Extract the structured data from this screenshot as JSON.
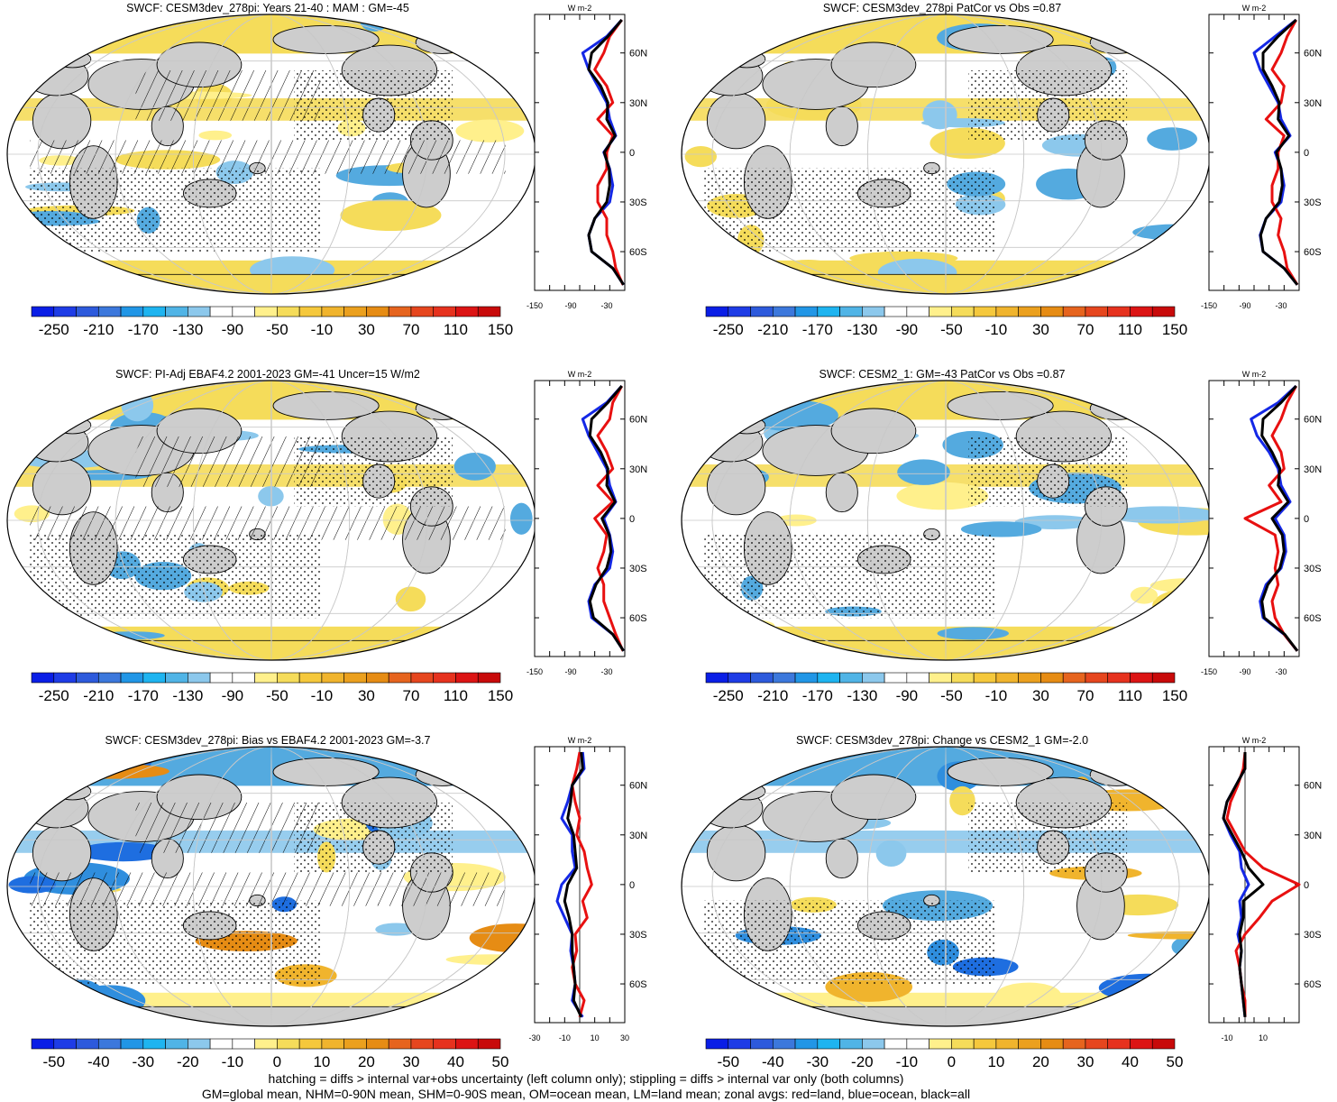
{
  "colors": {
    "land": "#cdcdcd",
    "neg": "#54aadf",
    "pos": "#f5dc5a",
    "strong_pos": "#e8a020",
    "zonal_land": "#e81010",
    "zonal_ocean": "#1428e6",
    "zonal_all": "#000000"
  },
  "colorbars": {
    "abs": {
      "labels": [
        "-250",
        "-210",
        "-170",
        "-130",
        "-90",
        "-50",
        "-10",
        "30",
        "70",
        "110",
        "150"
      ],
      "colors": [
        "#0a1ee6",
        "#1e3ce6",
        "#2d5adc",
        "#3c78dc",
        "#2196e6",
        "#1eb4f0",
        "#50b4e6",
        "#8cc8ec",
        "#ffffff",
        "#ffffff",
        "#fff08c",
        "#f5dc5a",
        "#f5c83c",
        "#f0b42d",
        "#eba01e",
        "#e68c14",
        "#e6641e",
        "#e6461e",
        "#e6321e",
        "#dc1414",
        "#c80a0a"
      ]
    },
    "diff": {
      "labels": [
        "-50",
        "-40",
        "-30",
        "-20",
        "-10",
        "0",
        "10",
        "20",
        "30",
        "40",
        "50"
      ],
      "colors": [
        "#0a1ee6",
        "#1e3ce6",
        "#2d5adc",
        "#3c78dc",
        "#2196e6",
        "#1eb4f0",
        "#50b4e6",
        "#8cc8ec",
        "#ffffff",
        "#ffffff",
        "#fff08c",
        "#f5dc5a",
        "#f5c83c",
        "#f0b42d",
        "#eba01e",
        "#e68c14",
        "#e6641e",
        "#e6461e",
        "#e6321e",
        "#dc1414",
        "#c80a0a"
      ]
    }
  },
  "chart_data": [
    {
      "type": "heatmap",
      "panel": "r1c1",
      "title": "SWCF: CESM3dev_278pi: Years 21-40 : MAM : GM=-45",
      "colorbar": "abs",
      "zonal": {
        "xlim": [
          -150,
          0
        ],
        "xticks": [
          "-150",
          "-90",
          "-30"
        ],
        "unit": "W m-2",
        "lat_ticks": [
          "60N",
          "30N",
          "0",
          "30S",
          "60S"
        ],
        "lat": [
          80,
          70,
          60,
          50,
          40,
          30,
          20,
          10,
          0,
          -10,
          -20,
          -30,
          -40,
          -50,
          -60,
          -70,
          -80
        ],
        "series": [
          {
            "key": "ocean",
            "values": [
              -5,
              -30,
              -70,
              -60,
              -45,
              -30,
              -25,
              -15,
              -35,
              -25,
              -20,
              -25,
              -50,
              -60,
              -55,
              -20,
              -2
            ]
          },
          {
            "key": "land",
            "values": [
              -5,
              -25,
              -35,
              -50,
              -30,
              -20,
              -45,
              -20,
              -30,
              -30,
              -45,
              -45,
              -30,
              -30,
              -20,
              -15,
              -3
            ]
          },
          {
            "key": "all",
            "values": [
              -5,
              -28,
              -55,
              -60,
              -40,
              -28,
              -30,
              -16,
              -34,
              -26,
              -25,
              -30,
              -50,
              -60,
              -55,
              -20,
              -2
            ]
          }
        ]
      }
    },
    {
      "type": "heatmap",
      "panel": "r1c2",
      "title": "SWCF: CESM3dev_278pi PatCor vs Obs =0.87",
      "colorbar": "abs",
      "zonal": {
        "xlim": [
          -150,
          0
        ],
        "xticks": [
          "-150",
          "-90",
          "-30"
        ],
        "unit": "W m-2",
        "lat_ticks": [
          "60N",
          "30N",
          "0",
          "30S",
          "60S"
        ],
        "lat": [
          80,
          70,
          60,
          50,
          40,
          30,
          20,
          10,
          0,
          -10,
          -20,
          -30,
          -40,
          -50,
          -60,
          -70,
          -80
        ],
        "series": [
          {
            "key": "ocean",
            "values": [
              -5,
              -40,
              -75,
              -65,
              -50,
              -35,
              -30,
              -15,
              -40,
              -30,
              -25,
              -30,
              -55,
              -65,
              -60,
              -25,
              -3
            ]
          },
          {
            "key": "land",
            "values": [
              -5,
              -20,
              -30,
              -45,
              -25,
              -30,
              -55,
              -25,
              -35,
              -35,
              -45,
              -45,
              -30,
              -35,
              -25,
              -20,
              -3
            ]
          },
          {
            "key": "all",
            "values": [
              -5,
              -35,
              -60,
              -60,
              -45,
              -33,
              -35,
              -17,
              -38,
              -30,
              -28,
              -33,
              -55,
              -64,
              -60,
              -25,
              -3
            ]
          }
        ]
      }
    },
    {
      "type": "heatmap",
      "panel": "r2c1",
      "title": "SWCF: PI-Adj EBAF4.2 2001-2023 GM=-41 Uncer=15 W/m2",
      "colorbar": "abs",
      "zonal": {
        "xlim": [
          -150,
          0
        ],
        "xticks": [
          "-150",
          "-90",
          "-30"
        ],
        "unit": "W m-2",
        "lat_ticks": [
          "60N",
          "30N",
          "0",
          "30S",
          "60S"
        ],
        "lat": [
          80,
          70,
          60,
          50,
          40,
          30,
          20,
          10,
          0,
          -10,
          -20,
          -30,
          -40,
          -50,
          -60,
          -70,
          -80
        ],
        "series": [
          {
            "key": "ocean",
            "values": [
              -5,
              -30,
              -70,
              -60,
              -45,
              -30,
              -25,
              -15,
              -35,
              -25,
              -20,
              -25,
              -50,
              -60,
              -55,
              -20,
              -2
            ]
          },
          {
            "key": "land",
            "values": [
              -5,
              -20,
              -25,
              -45,
              -30,
              -20,
              -45,
              -20,
              -50,
              -30,
              -35,
              -45,
              -35,
              -35,
              -25,
              -15,
              -3
            ]
          },
          {
            "key": "all",
            "values": [
              -5,
              -28,
              -55,
              -58,
              -40,
              -28,
              -30,
              -16,
              -38,
              -26,
              -23,
              -30,
              -48,
              -58,
              -52,
              -20,
              -2
            ]
          }
        ]
      }
    },
    {
      "type": "heatmap",
      "panel": "r2c2",
      "title": "SWCF: CESM2_1: GM=-43 PatCor vs Obs =0.87",
      "colorbar": "abs",
      "zonal": {
        "xlim": [
          -150,
          0
        ],
        "xticks": [
          "-150",
          "-90",
          "-30"
        ],
        "unit": "W m-2",
        "lat_ticks": [
          "60N",
          "30N",
          "0",
          "30S",
          "60S"
        ],
        "lat": [
          80,
          70,
          60,
          50,
          40,
          30,
          20,
          10,
          0,
          -10,
          -20,
          -30,
          -40,
          -50,
          -60,
          -70,
          -80
        ],
        "series": [
          {
            "key": "ocean",
            "values": [
              -5,
              -35,
              -80,
              -70,
              -50,
              -35,
              -30,
              -15,
              -40,
              -25,
              -22,
              -30,
              -55,
              -65,
              -60,
              -25,
              -3
            ]
          },
          {
            "key": "land",
            "values": [
              -5,
              -20,
              -30,
              -45,
              -30,
              -25,
              -50,
              -30,
              -90,
              -40,
              -35,
              -40,
              -35,
              -45,
              -40,
              -25,
              -3
            ]
          },
          {
            "key": "all",
            "values": [
              -5,
              -30,
              -60,
              -62,
              -45,
              -32,
              -35,
              -18,
              -45,
              -28,
              -25,
              -32,
              -52,
              -62,
              -58,
              -24,
              -3
            ]
          }
        ]
      }
    },
    {
      "type": "heatmap",
      "panel": "r3c1",
      "title": "SWCF: CESM3dev_278pi: Bias vs EBAF4.2 2001-2023 GM=-3.7",
      "colorbar": "diff",
      "zonal": {
        "xlim": [
          -30,
          30
        ],
        "xticks": [
          "-30",
          "-10",
          "10",
          "30"
        ],
        "unit": "W m-2",
        "lat_ticks": [
          "60N",
          "30N",
          "0",
          "30S",
          "60S"
        ],
        "lat": [
          80,
          70,
          60,
          50,
          40,
          30,
          20,
          10,
          0,
          -10,
          -20,
          -30,
          -40,
          -50,
          -60,
          -70,
          -80
        ],
        "series": [
          {
            "key": "ocean",
            "values": [
              2,
              3,
              -5,
              -8,
              -12,
              -5,
              -5,
              -3,
              -12,
              -15,
              -10,
              -5,
              -6,
              -4,
              -3,
              -5,
              2
            ]
          },
          {
            "key": "land",
            "values": [
              0,
              -2,
              -5,
              -3,
              0,
              -2,
              3,
              5,
              8,
              2,
              5,
              -3,
              -2,
              -5,
              -3,
              3,
              0
            ]
          },
          {
            "key": "all",
            "values": [
              1,
              2,
              -5,
              -6,
              -8,
              -4,
              -3,
              -2,
              -8,
              -10,
              -7,
              -5,
              -5,
              -4,
              -3,
              -4,
              1
            ]
          }
        ]
      }
    },
    {
      "type": "heatmap",
      "panel": "r3c2",
      "title": "SWCF: CESM3dev_278pi: Change vs CESM2_1 GM=-2.0",
      "colorbar": "diff",
      "zonal": {
        "xlim": [
          -20,
          30
        ],
        "xticks": [
          "-10",
          "10"
        ],
        "unit": "W m-2",
        "lat_ticks": [
          "60N",
          "30N",
          "0",
          "30S",
          "60S"
        ],
        "lat": [
          80,
          70,
          60,
          50,
          40,
          30,
          20,
          10,
          0,
          -10,
          -20,
          -30,
          -40,
          -50,
          -60,
          -70,
          -80
        ],
        "series": [
          {
            "key": "ocean",
            "values": [
              0,
              0,
              -5,
              -10,
              -12,
              -8,
              -3,
              -2,
              2,
              -3,
              -2,
              -4,
              -2,
              -3,
              -2,
              -1,
              0
            ]
          },
          {
            "key": "land",
            "values": [
              0,
              -1,
              -4,
              -8,
              -10,
              -5,
              0,
              10,
              30,
              15,
              8,
              0,
              -5,
              -3,
              -2,
              0,
              0
            ]
          },
          {
            "key": "all",
            "values": [
              0,
              0,
              -5,
              -10,
              -12,
              -7,
              -2,
              2,
              10,
              -1,
              -1,
              -3,
              -2,
              -3,
              -2,
              -1,
              0
            ]
          }
        ]
      }
    }
  ],
  "footer": {
    "line1": "hatching = diffs > internal var+obs uncertainty (left column only); stippling = diffs > internal var only (both columns)",
    "line2": "GM=global mean, NHM=0-90N mean, SHM=0-90S mean, OM=ocean mean, LM=land mean; zonal avgs: red=land, blue=ocean, black=all"
  }
}
